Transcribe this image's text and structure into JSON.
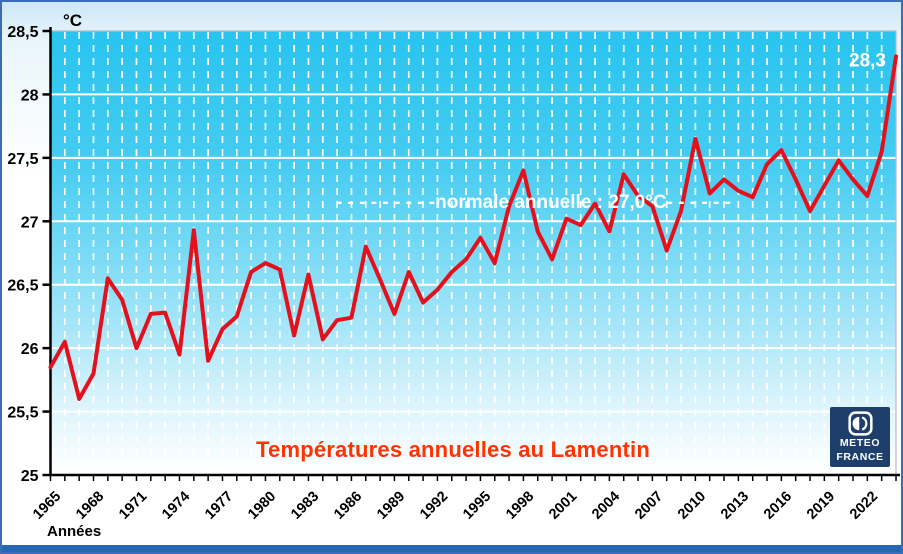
{
  "chart_data": {
    "type": "line",
    "title": "Températures annuelles au Lamentin",
    "xlabel": "Années",
    "ylabel": "°C",
    "ylim": [
      25,
      28.5
    ],
    "ytick_step": 0.5,
    "ytick_labels": [
      "25",
      "25,5",
      "26",
      "26,5",
      "27",
      "27,5",
      "28",
      "28,5"
    ],
    "xtick_labels": [
      "1965",
      "1968",
      "1971",
      "1974",
      "1977",
      "1980",
      "1983",
      "1986",
      "1989",
      "1992",
      "1995",
      "1998",
      "2001",
      "2004",
      "2007",
      "2010",
      "2013",
      "2016",
      "2019",
      "2022"
    ],
    "grid": true,
    "legend": "none",
    "x": [
      1965,
      1966,
      1967,
      1968,
      1969,
      1970,
      1971,
      1972,
      1973,
      1974,
      1975,
      1976,
      1977,
      1978,
      1979,
      1980,
      1981,
      1982,
      1983,
      1984,
      1985,
      1986,
      1987,
      1988,
      1989,
      1990,
      1991,
      1992,
      1993,
      1994,
      1995,
      1996,
      1997,
      1998,
      1999,
      2000,
      2001,
      2002,
      2003,
      2004,
      2005,
      2006,
      2007,
      2008,
      2009,
      2010,
      2011,
      2012,
      2013,
      2014,
      2015,
      2016,
      2017,
      2018,
      2019,
      2020,
      2021,
      2022,
      2023,
      2024
    ],
    "values": [
      25.85,
      26.05,
      25.6,
      25.8,
      26.55,
      26.38,
      26.0,
      26.27,
      26.28,
      25.95,
      26.93,
      25.9,
      26.15,
      26.25,
      26.6,
      26.67,
      26.62,
      26.1,
      26.58,
      26.07,
      26.22,
      26.24,
      26.8,
      26.54,
      26.27,
      26.6,
      26.36,
      26.46,
      26.6,
      26.7,
      26.87,
      26.67,
      27.12,
      27.4,
      26.92,
      26.7,
      27.02,
      26.97,
      27.14,
      26.92,
      27.37,
      27.2,
      27.12,
      26.77,
      27.08,
      27.65,
      27.22,
      27.33,
      27.24,
      27.19,
      27.45,
      27.56,
      27.33,
      27.08,
      27.28,
      27.48,
      27.33,
      27.2,
      27.55,
      28.3
    ],
    "normal_line": {
      "text": "- - - - - -  - - -normale annuelle : 27,0°C- - - - - -",
      "value": 27.0,
      "label_x_year": 1998.7,
      "label_y_value": 27.16
    },
    "last_point_label": "28,3",
    "colors": {
      "line": "#e4111c",
      "title": "#ff3300",
      "plot_top": "#28c4ef",
      "annotation_text": "#ffffff",
      "logo_bg": "#1e3f6b",
      "bottom_bar": "#2667b2"
    }
  },
  "labels": {
    "y_axis_unit": "°C",
    "x_axis_title": "Années"
  },
  "logo": {
    "line1": "METEO",
    "line2": "FRANCE"
  }
}
